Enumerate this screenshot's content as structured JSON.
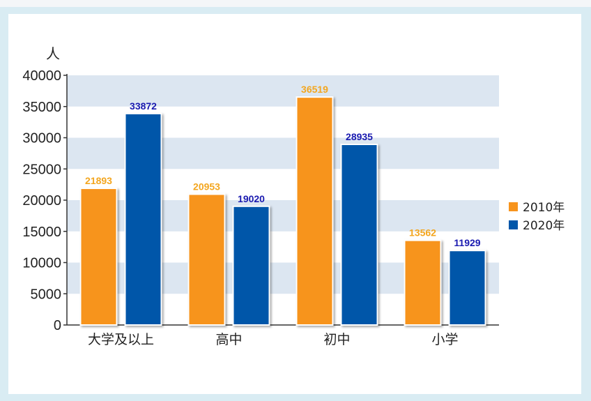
{
  "chart_data": {
    "type": "bar",
    "ylabel": "人",
    "categories": [
      "大学及以上",
      "高中",
      "初中",
      "小学"
    ],
    "series": [
      {
        "name": "2010年",
        "color": "#f7941d",
        "values": [
          21893,
          20953,
          36519,
          13562
        ]
      },
      {
        "name": "2020年",
        "color": "#0056a9",
        "values": [
          33872,
          19020,
          28935,
          11929
        ]
      }
    ],
    "ylim": [
      0,
      40000
    ],
    "yticks": [
      0,
      5000,
      10000,
      15000,
      20000,
      25000,
      30000,
      35000,
      40000
    ],
    "label_colors": [
      "#f3a61f",
      "#1a1ab0"
    ],
    "band_color": "#dce6f1",
    "grid": false,
    "legend_position": "right"
  }
}
